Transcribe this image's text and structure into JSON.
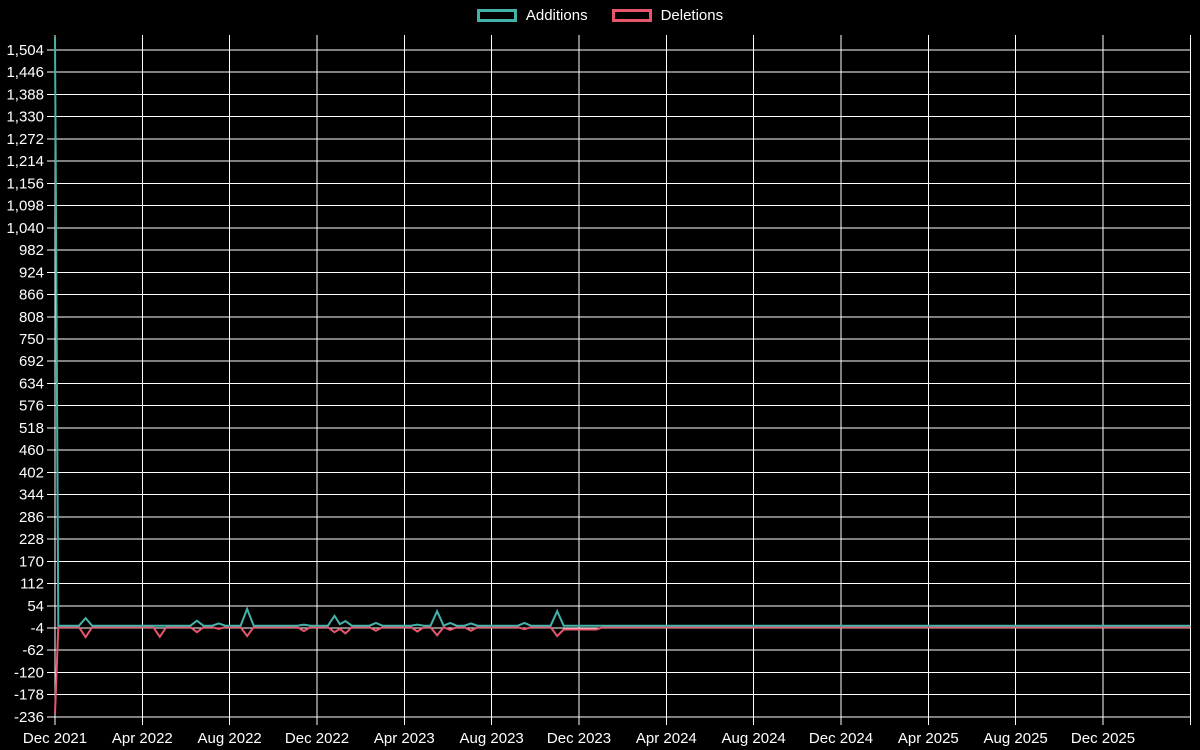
{
  "colors": {
    "background": "#000000",
    "grid": "#ffffff",
    "text": "#ffffff",
    "additions": "#45b2a9",
    "deletions": "#e8566d"
  },
  "legend": {
    "items": [
      {
        "label": "Additions",
        "color": "#45b2a9"
      },
      {
        "label": "Deletions",
        "color": "#e8566d"
      }
    ]
  },
  "chart_data": {
    "type": "line",
    "title": "",
    "xlabel": "",
    "ylabel": "",
    "grid": true,
    "legend_position": "top-center",
    "x_unit": "months since Dec 2021",
    "xlim": [
      0,
      52
    ],
    "ylim": [
      -243.8,
      1540.6
    ],
    "x_ticks": [
      {
        "m": 0,
        "label": "Dec 2021"
      },
      {
        "m": 4,
        "label": "Apr 2022"
      },
      {
        "m": 8,
        "label": "Aug 2022"
      },
      {
        "m": 12,
        "label": "Dec 2022"
      },
      {
        "m": 16,
        "label": "Apr 2023"
      },
      {
        "m": 20,
        "label": "Aug 2023"
      },
      {
        "m": 24,
        "label": "Dec 2023"
      },
      {
        "m": 28,
        "label": "Apr 2024"
      },
      {
        "m": 32,
        "label": "Aug 2024"
      },
      {
        "m": 36,
        "label": "Dec 2024"
      },
      {
        "m": 40,
        "label": "Apr 2025"
      },
      {
        "m": 44,
        "label": "Aug 2025"
      },
      {
        "m": 48,
        "label": "Dec 2025"
      },
      {
        "m": 52,
        "label": ""
      }
    ],
    "y_ticks": [
      1504,
      1446,
      1388,
      1330,
      1272,
      1214,
      1156,
      1098,
      1040,
      982,
      924,
      866,
      808,
      750,
      692,
      634,
      576,
      518,
      460,
      402,
      344,
      286,
      228,
      170,
      112,
      54,
      -4,
      -62,
      -120,
      -178,
      -236
    ],
    "series": [
      {
        "name": "Additions",
        "color": "#45b2a9",
        "points": [
          [
            0,
            1538
          ],
          [
            0.15,
            2
          ],
          [
            1.1,
            2
          ],
          [
            1.4,
            22
          ],
          [
            1.7,
            2
          ],
          [
            4.5,
            2
          ],
          [
            4.8,
            2
          ],
          [
            5.1,
            2
          ],
          [
            6.2,
            2
          ],
          [
            6.5,
            15
          ],
          [
            6.8,
            2
          ],
          [
            7.2,
            2
          ],
          [
            7.5,
            8
          ],
          [
            7.8,
            2
          ],
          [
            8.5,
            2
          ],
          [
            8.8,
            46
          ],
          [
            9.1,
            2
          ],
          [
            11.1,
            2
          ],
          [
            11.4,
            5
          ],
          [
            11.7,
            2
          ],
          [
            12.5,
            2
          ],
          [
            12.8,
            28
          ],
          [
            13.05,
            6
          ],
          [
            13.3,
            14
          ],
          [
            13.6,
            2
          ],
          [
            14.4,
            2
          ],
          [
            14.7,
            9
          ],
          [
            15.0,
            2
          ],
          [
            16.3,
            2
          ],
          [
            16.6,
            5
          ],
          [
            16.9,
            2
          ],
          [
            17.2,
            2
          ],
          [
            17.5,
            40
          ],
          [
            17.8,
            2
          ],
          [
            18.1,
            9
          ],
          [
            18.4,
            2
          ],
          [
            18.75,
            2
          ],
          [
            19.05,
            8
          ],
          [
            19.35,
            2
          ],
          [
            21.2,
            2
          ],
          [
            21.5,
            9
          ],
          [
            21.8,
            2
          ],
          [
            22.7,
            2
          ],
          [
            23.0,
            40
          ],
          [
            23.3,
            2
          ],
          [
            52,
            2
          ]
        ]
      },
      {
        "name": "Deletions",
        "color": "#e8566d",
        "points": [
          [
            0,
            -228
          ],
          [
            0.15,
            -2
          ],
          [
            1.1,
            -2
          ],
          [
            1.4,
            -28
          ],
          [
            1.7,
            -2
          ],
          [
            4.5,
            -2
          ],
          [
            4.8,
            -27
          ],
          [
            5.1,
            -2
          ],
          [
            6.2,
            -2
          ],
          [
            6.5,
            -15
          ],
          [
            6.8,
            -2
          ],
          [
            7.2,
            -2
          ],
          [
            7.5,
            -6
          ],
          [
            7.8,
            -2
          ],
          [
            8.5,
            -2
          ],
          [
            8.8,
            -25
          ],
          [
            9.1,
            -2
          ],
          [
            11.1,
            -2
          ],
          [
            11.4,
            -12
          ],
          [
            11.7,
            -2
          ],
          [
            12.5,
            -2
          ],
          [
            12.8,
            -15
          ],
          [
            13.05,
            -6
          ],
          [
            13.3,
            -18
          ],
          [
            13.6,
            -2
          ],
          [
            14.4,
            -2
          ],
          [
            14.7,
            -11
          ],
          [
            15.0,
            -2
          ],
          [
            16.3,
            -2
          ],
          [
            16.6,
            -13
          ],
          [
            16.9,
            -2
          ],
          [
            17.2,
            -2
          ],
          [
            17.5,
            -23
          ],
          [
            17.8,
            -2
          ],
          [
            18.1,
            -9
          ],
          [
            18.4,
            -2
          ],
          [
            18.75,
            -2
          ],
          [
            19.05,
            -11
          ],
          [
            19.35,
            -2
          ],
          [
            21.2,
            -2
          ],
          [
            21.5,
            -7
          ],
          [
            21.8,
            -2
          ],
          [
            22.7,
            -2
          ],
          [
            23.0,
            -25
          ],
          [
            23.3,
            -8
          ],
          [
            24.8,
            -8
          ],
          [
            25.1,
            -2
          ],
          [
            52,
            -2
          ]
        ]
      }
    ]
  }
}
